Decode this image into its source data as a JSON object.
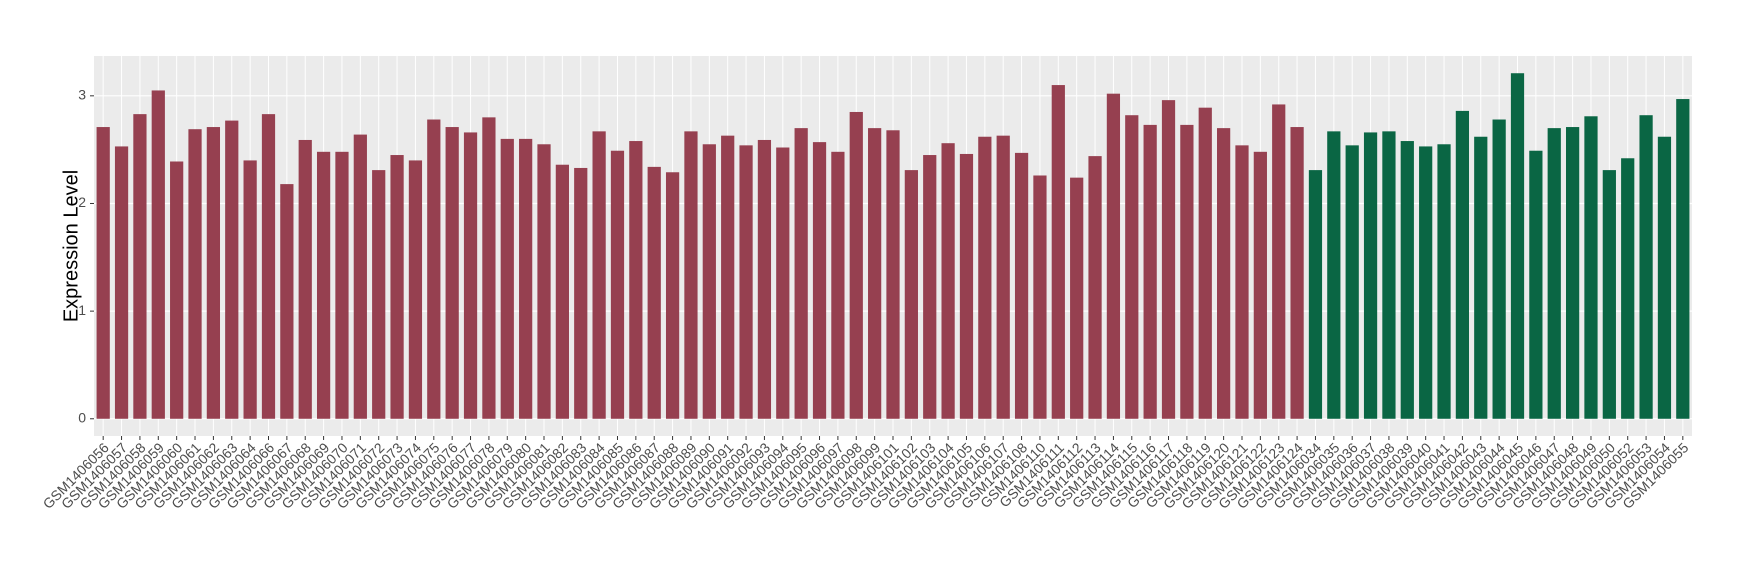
{
  "chart_data": {
    "type": "bar",
    "y_label": "Expression Level",
    "categories": [
      "GSM1406056",
      "GSM1406057",
      "GSM1406058",
      "GSM1406059",
      "GSM1406060",
      "GSM1406061",
      "GSM1406062",
      "GSM1406063",
      "GSM1406064",
      "GSM1406066",
      "GSM1406067",
      "GSM1406068",
      "GSM1406069",
      "GSM1406070",
      "GSM1406071",
      "GSM1406072",
      "GSM1406073",
      "GSM1406074",
      "GSM1406075",
      "GSM1406076",
      "GSM1406077",
      "GSM1406078",
      "GSM1406079",
      "GSM1406080",
      "GSM1406081",
      "GSM1406082",
      "GSM1406083",
      "GSM1406084",
      "GSM1406085",
      "GSM1406086",
      "GSM1406087",
      "GSM1406088",
      "GSM1406089",
      "GSM1406090",
      "GSM1406091",
      "GSM1406092",
      "GSM1406093",
      "GSM1406094",
      "GSM1406095",
      "GSM1406096",
      "GSM1406097",
      "GSM1406098",
      "GSM1406099",
      "GSM1406101",
      "GSM1406102",
      "GSM1406103",
      "GSM1406104",
      "GSM1406105",
      "GSM1406106",
      "GSM1406107",
      "GSM1406108",
      "GSM1406110",
      "GSM1406111",
      "GSM1406112",
      "GSM1406113",
      "GSM1406114",
      "GSM1406115",
      "GSM1406116",
      "GSM1406117",
      "GSM1406118",
      "GSM1406119",
      "GSM1406120",
      "GSM1406121",
      "GSM1406122",
      "GSM1406123",
      "GSM1406124",
      "GSM1406034",
      "GSM1406035",
      "GSM1406036",
      "GSM1406037",
      "GSM1406038",
      "GSM1406039",
      "GSM1406040",
      "GSM1406041",
      "GSM1406042",
      "GSM1406043",
      "GSM1406044",
      "GSM1406045",
      "GSM1406046",
      "GSM1406047",
      "GSM1406048",
      "GSM1406049",
      "GSM1406050",
      "GSM1406052",
      "GSM1406053",
      "GSM1406054",
      "GSM1406055"
    ],
    "values": [
      2.71,
      2.53,
      2.83,
      3.05,
      2.39,
      2.69,
      2.71,
      2.77,
      2.4,
      2.83,
      2.18,
      2.59,
      2.48,
      2.48,
      2.64,
      2.31,
      2.45,
      2.4,
      2.78,
      2.71,
      2.66,
      2.8,
      2.6,
      2.6,
      2.55,
      2.36,
      2.33,
      2.67,
      2.49,
      2.58,
      2.34,
      2.29,
      2.67,
      2.55,
      2.63,
      2.54,
      2.59,
      2.52,
      2.7,
      2.57,
      2.48,
      2.85,
      2.7,
      2.68,
      2.31,
      2.45,
      2.56,
      2.46,
      2.62,
      2.63,
      2.47,
      2.26,
      3.1,
      2.24,
      2.44,
      3.02,
      2.82,
      2.73,
      2.96,
      2.73,
      2.89,
      2.7,
      2.54,
      2.48,
      2.92,
      2.71,
      2.31,
      2.67,
      2.54,
      2.66,
      2.67,
      2.58,
      2.53,
      2.55,
      2.86,
      2.62,
      2.78,
      3.21,
      2.49,
      2.7,
      2.71,
      2.81,
      2.31,
      2.42,
      2.82,
      2.62,
      2.97
    ],
    "colors": [
      "#964050",
      "#964050",
      "#964050",
      "#964050",
      "#964050",
      "#964050",
      "#964050",
      "#964050",
      "#964050",
      "#964050",
      "#964050",
      "#964050",
      "#964050",
      "#964050",
      "#964050",
      "#964050",
      "#964050",
      "#964050",
      "#964050",
      "#964050",
      "#964050",
      "#964050",
      "#964050",
      "#964050",
      "#964050",
      "#964050",
      "#964050",
      "#964050",
      "#964050",
      "#964050",
      "#964050",
      "#964050",
      "#964050",
      "#964050",
      "#964050",
      "#964050",
      "#964050",
      "#964050",
      "#964050",
      "#964050",
      "#964050",
      "#964050",
      "#964050",
      "#964050",
      "#964050",
      "#964050",
      "#964050",
      "#964050",
      "#964050",
      "#964050",
      "#964050",
      "#964050",
      "#964050",
      "#964050",
      "#964050",
      "#964050",
      "#964050",
      "#964050",
      "#964050",
      "#964050",
      "#964050",
      "#964050",
      "#964050",
      "#964050",
      "#964050",
      "#964050",
      "#0a6644",
      "#0a6644",
      "#0a6644",
      "#0a6644",
      "#0a6644",
      "#0a6644",
      "#0a6644",
      "#0a6644",
      "#0a6644",
      "#0a6644",
      "#0a6644",
      "#0a6644",
      "#0a6644",
      "#0a6644",
      "#0a6644",
      "#0a6644",
      "#0a6644",
      "#0a6644",
      "#0a6644",
      "#0a6644",
      "#0a6644"
    ],
    "ylim": [
      -0.16,
      3.37
    ],
    "yticks": [
      0,
      1,
      2,
      3
    ],
    "grid": true
  }
}
